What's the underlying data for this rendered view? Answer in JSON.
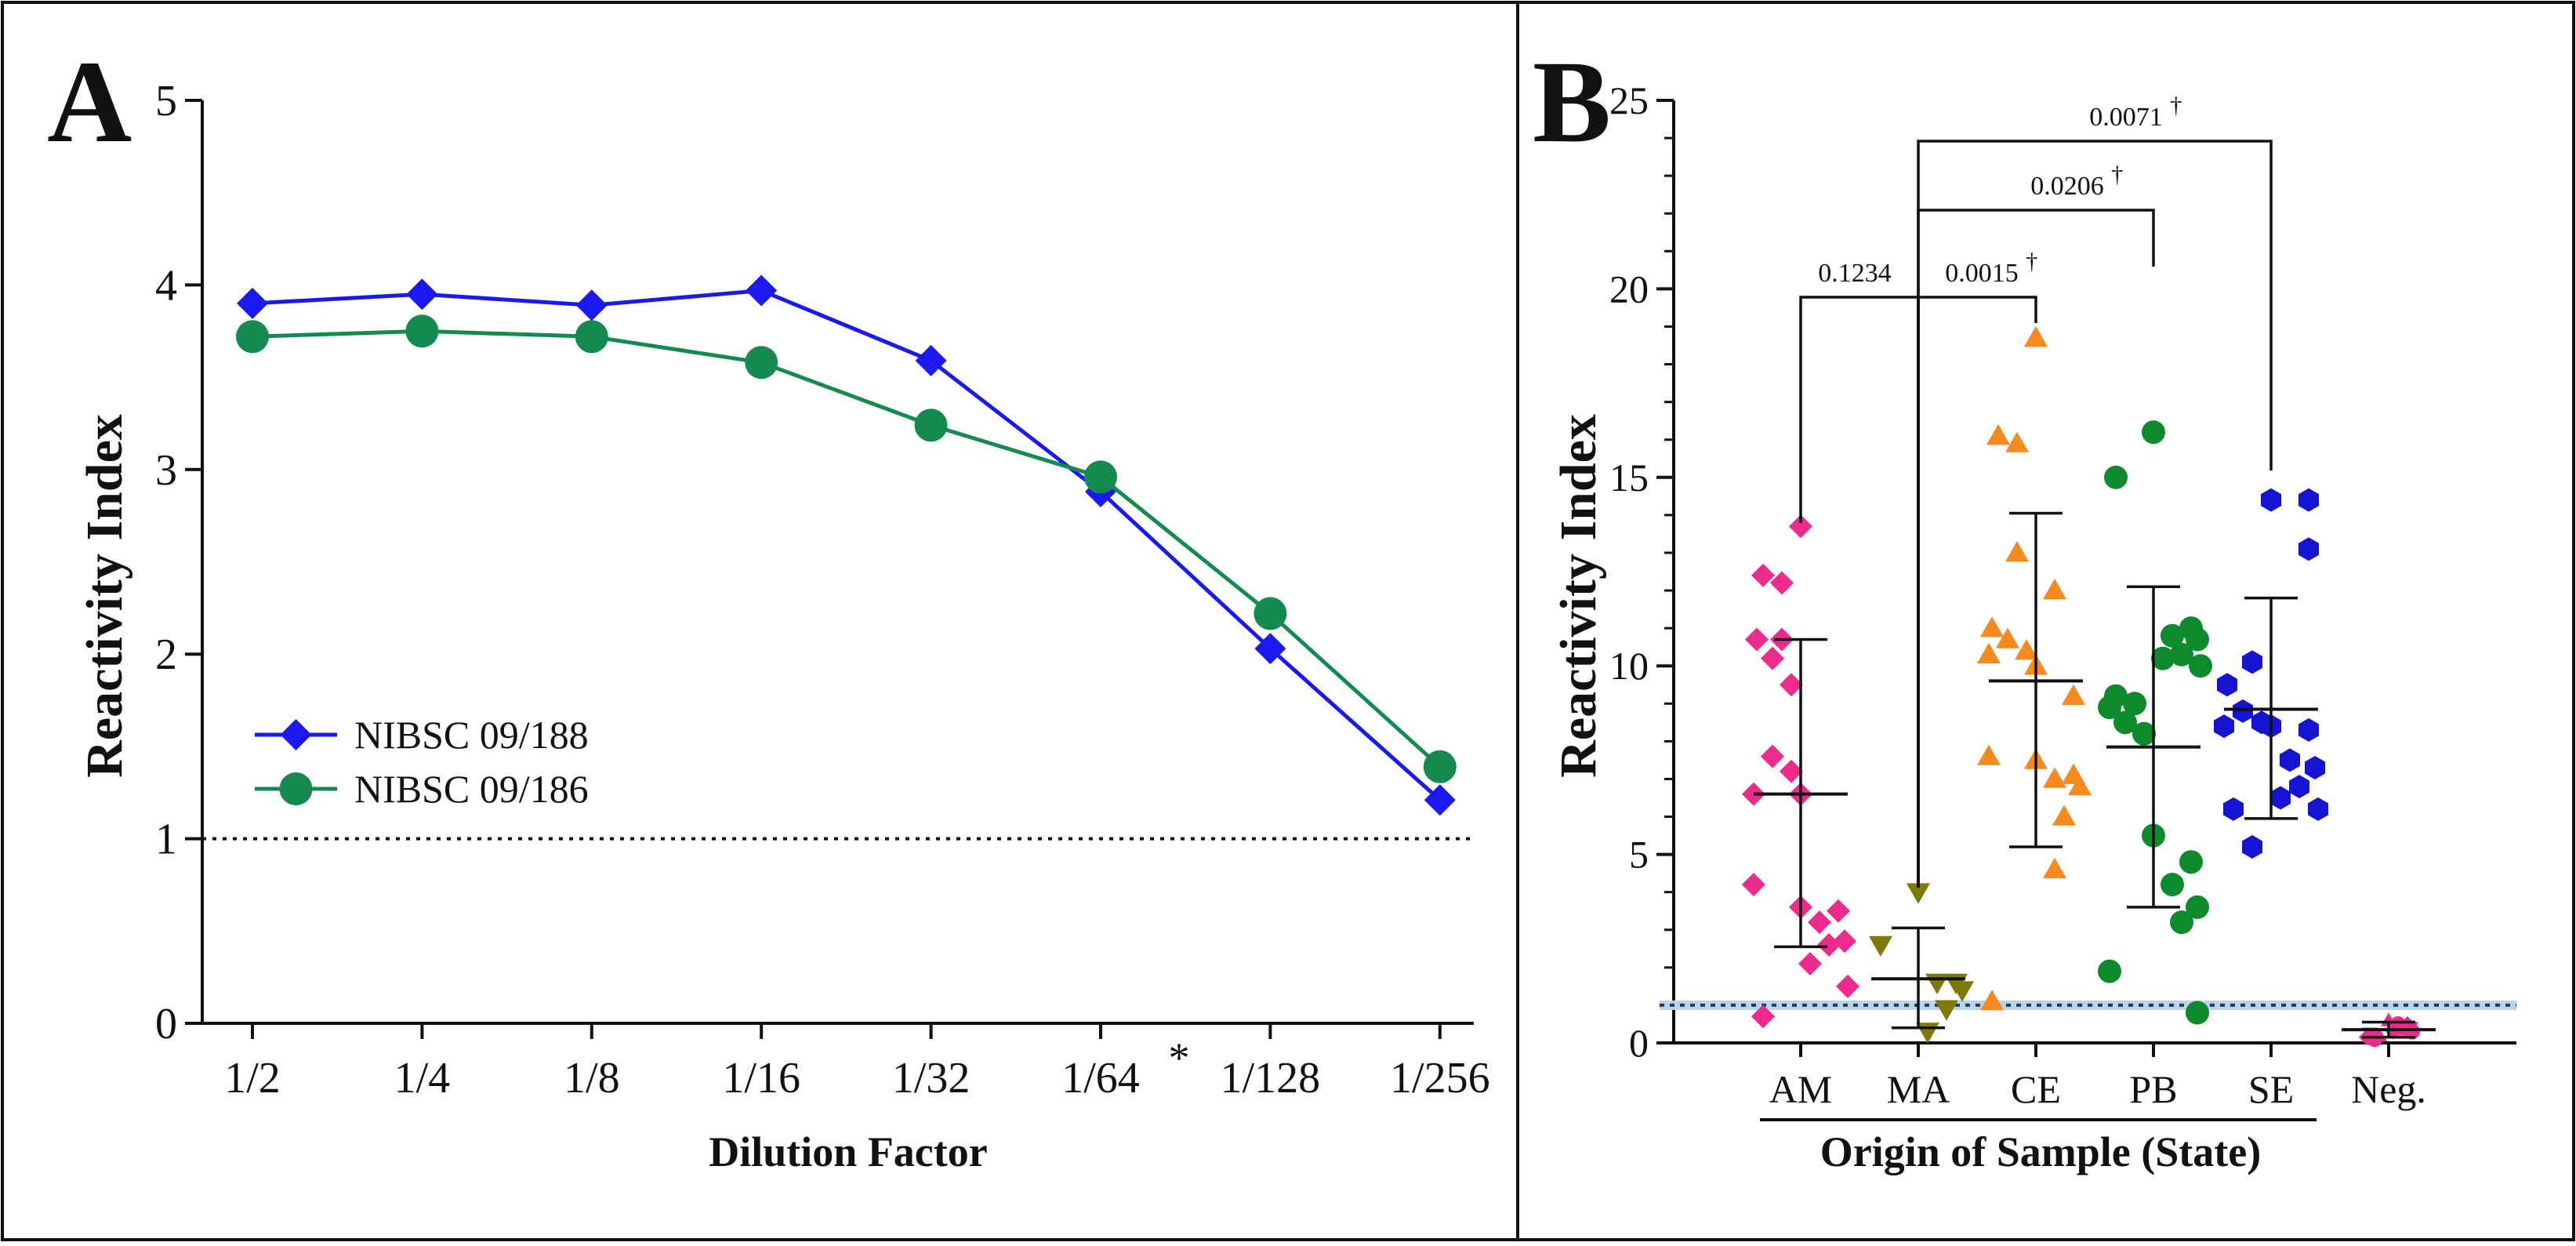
{
  "panels": [
    {
      "letter": "A"
    },
    {
      "letter": "B"
    }
  ],
  "chart_data": [
    {
      "type": "line",
      "panel": "A",
      "xlabel": "Dilution Factor",
      "ylabel": "Reactivity Index",
      "categories": [
        "1/2",
        "1/4",
        "1/8",
        "1/16",
        "1/32",
        "1/64",
        "1/128",
        "1/256"
      ],
      "category_note": {
        "index": 5,
        "mark": "*"
      },
      "ylim": [
        0,
        5
      ],
      "yticks": [
        "0",
        "1",
        "2",
        "3",
        "4",
        "5"
      ],
      "cutoff_line": 1,
      "legend_position": "middle-left",
      "series": [
        {
          "name": "NIBSC 09/188",
          "color": "#1a1af0",
          "marker": "diamond",
          "values": [
            3.9,
            3.95,
            3.89,
            3.97,
            3.59,
            2.88,
            2.03,
            1.21
          ]
        },
        {
          "name": "NIBSC 09/186",
          "color": "#158a4e",
          "marker": "circle",
          "values": [
            3.72,
            3.75,
            3.72,
            3.58,
            3.24,
            2.96,
            2.22,
            1.39
          ]
        }
      ]
    },
    {
      "type": "scatter",
      "panel": "B",
      "xlabel": "Origin of Sample (State)",
      "ylabel": "Reactivity Index",
      "categories": [
        "AM",
        "MA",
        "CE",
        "PB",
        "SE",
        "Neg."
      ],
      "ylim": [
        0,
        25
      ],
      "yticks": [
        "0",
        "5",
        "10",
        "15",
        "20",
        "25"
      ],
      "cutoff_line": 1,
      "groups": [
        {
          "category": "AM",
          "color": "#ee2a8c",
          "marker": "diamond",
          "mean": 6.6,
          "sd_low": 2.55,
          "sd_high": 10.7,
          "points": [
            13.7,
            12.4,
            12.2,
            10.7,
            10.7,
            10.2,
            9.5,
            7.6,
            7.2,
            6.6,
            6.6,
            4.2,
            3.6,
            3.5,
            3.2,
            2.7,
            2.6,
            2.1,
            1.5,
            0.7
          ]
        },
        {
          "category": "MA",
          "color": "#7f7a05",
          "marker": "triangle-down",
          "mean": 1.7,
          "sd_low": 0.4,
          "sd_high": 3.05,
          "points": [
            4.0,
            2.6,
            1.6,
            1.6,
            1.4,
            0.9,
            0.3
          ]
        },
        {
          "category": "CE",
          "color": "#f68a1e",
          "marker": "triangle-up",
          "mean": 9.6,
          "sd_low": 5.2,
          "sd_high": 14.05,
          "points": [
            18.7,
            16.1,
            15.9,
            13.0,
            12.0,
            11.0,
            10.7,
            10.4,
            10.3,
            10.0,
            9.2,
            7.6,
            7.5,
            7.1,
            7.0,
            6.8,
            6.0,
            4.6,
            1.1
          ]
        },
        {
          "category": "PB",
          "color": "#0c8a2c",
          "marker": "circle",
          "mean": 7.85,
          "sd_low": 3.6,
          "sd_high": 12.1,
          "points": [
            16.2,
            15.0,
            11.0,
            10.8,
            10.7,
            10.3,
            10.2,
            10.0,
            9.2,
            9.0,
            8.9,
            8.5,
            8.2,
            5.5,
            4.8,
            4.2,
            3.6,
            3.2,
            1.9,
            0.8
          ]
        },
        {
          "category": "SE",
          "color": "#1414d2",
          "marker": "hexagon",
          "mean": 8.85,
          "sd_low": 5.95,
          "sd_high": 11.8,
          "points": [
            14.4,
            14.4,
            13.1,
            10.1,
            9.5,
            8.8,
            8.5,
            8.4,
            8.4,
            8.3,
            7.5,
            7.3,
            6.8,
            6.5,
            6.2,
            6.2,
            5.2
          ]
        },
        {
          "category": "Neg.",
          "color": "#ee2a8c",
          "marker": "mixed-small",
          "mean": 0.35,
          "sd_low": 0.15,
          "sd_high": 0.55,
          "points": [
            0.6,
            0.5,
            0.5,
            0.4,
            0.35,
            0.3,
            0.3,
            0.25,
            0.2,
            0.15,
            0.1
          ]
        }
      ],
      "comparisons": [
        {
          "from": "AM",
          "to": "MA",
          "label": "0.1234",
          "dagger": false
        },
        {
          "from": "MA",
          "to": "CE",
          "label": "0.0015",
          "dagger": true
        },
        {
          "from": "MA",
          "to": "PB",
          "label": "0.0206",
          "dagger": true
        },
        {
          "from": "MA",
          "to": "SE",
          "label": "0.0071",
          "dagger": true
        }
      ],
      "dagger_symbol": "†"
    }
  ]
}
